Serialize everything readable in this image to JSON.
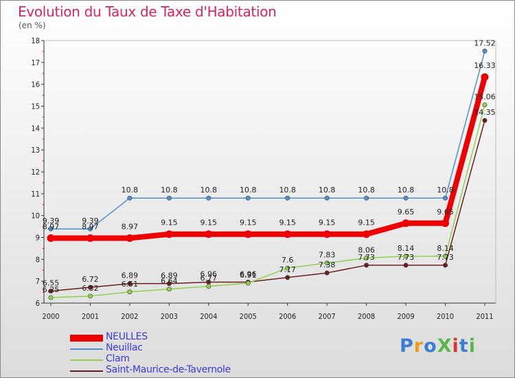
{
  "title": "Evolution du Taux de Taxe d'Habitation",
  "unit": "(en %)",
  "logo": {
    "text": "ProXiti",
    "colors": [
      "#3a7fd5",
      "#f29a1e",
      "#3a7fd5",
      "#58b847",
      "#e0322f",
      "#3a7fd5",
      "#58b847"
    ]
  },
  "chart_data": {
    "type": "line",
    "categories": [
      "2000",
      "2001",
      "2002",
      "2003",
      "2004",
      "2005",
      "2006",
      "2007",
      "2008",
      "2009",
      "2010",
      "2011"
    ],
    "ylim": [
      6,
      18
    ],
    "yticks": [
      "6",
      "7",
      "8",
      "9",
      "10",
      "11",
      "12",
      "13",
      "14",
      "15",
      "16",
      "17",
      "18"
    ],
    "grid": false,
    "legend_position": "bottom-left",
    "series": [
      {
        "name": "Saint-Maurice-de-Tavernole",
        "color": "#6b1d1d",
        "values": [
          6.55,
          6.72,
          6.89,
          6.89,
          6.96,
          6.96,
          7.17,
          7.38,
          7.73,
          7.73,
          7.73,
          14.35
        ],
        "labels": [
          "6.55",
          "6.72",
          "6.89",
          "6.89",
          "6.96",
          "6.96",
          "7.17",
          "7.38",
          "7.73",
          "7.73",
          "7.73",
          "14.35"
        ]
      },
      {
        "name": "Clam",
        "color": "#8fd14f",
        "values": [
          6.25,
          6.32,
          6.51,
          6.64,
          6.77,
          6.91,
          7.6,
          7.83,
          8.06,
          8.14,
          8.14,
          15.06
        ],
        "labels": [
          "6.25",
          "6.32",
          "6.51",
          "6.64",
          "6.77",
          "6.91",
          "7.6",
          "7.83",
          "8.06",
          "8.14",
          "8.14",
          "15.06"
        ]
      },
      {
        "name": "Neuillac",
        "color": "#4f8fcf",
        "values": [
          9.39,
          9.39,
          10.8,
          10.8,
          10.8,
          10.8,
          10.8,
          10.8,
          10.8,
          10.8,
          10.8,
          17.52
        ],
        "labels": [
          "9.39",
          "9.39",
          "10.8",
          "10.8",
          "10.8",
          "10.8",
          "10.8",
          "10.8",
          "10.8",
          "10.8",
          "10.8",
          "17.52"
        ]
      },
      {
        "name": "NEULLES",
        "color": "#ee0000",
        "values": [
          8.97,
          8.97,
          8.97,
          9.15,
          9.15,
          9.15,
          9.15,
          9.15,
          9.15,
          9.65,
          9.65,
          16.33
        ],
        "labels": [
          "8.97",
          "8.97",
          "8.97",
          "9.15",
          "9.15",
          "9.15",
          "9.15",
          "9.15",
          "9.15",
          "9.65",
          "9.65",
          "16.33"
        ]
      }
    ]
  },
  "legend": [
    {
      "name": "NEULLES",
      "color": "#ee0000",
      "thick": true
    },
    {
      "name": "Neuillac",
      "color": "#4f8fcf",
      "thick": false
    },
    {
      "name": "Clam",
      "color": "#8fd14f",
      "thick": false
    },
    {
      "name": "Saint-Maurice-de-Tavernole",
      "color": "#6b1d1d",
      "thick": false
    }
  ]
}
